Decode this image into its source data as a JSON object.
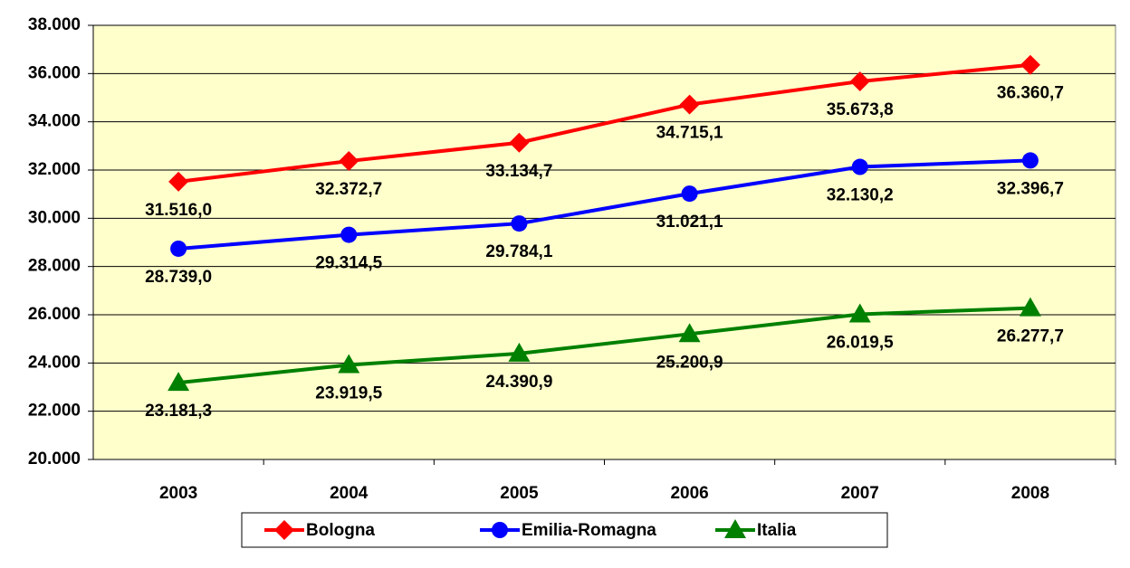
{
  "chart_data": {
    "type": "line",
    "categories": [
      "2003",
      "2004",
      "2005",
      "2006",
      "2007",
      "2008"
    ],
    "series": [
      {
        "name": "Bologna",
        "color": "#ff0000",
        "marker": "diamond",
        "values": [
          31516.0,
          32372.7,
          33134.7,
          34715.1,
          35673.8,
          36360.7
        ],
        "value_labels": [
          "31.516,0",
          "32.372,7",
          "33.134,7",
          "34.715,1",
          "35.673,8",
          "36.360,7"
        ]
      },
      {
        "name": "Emilia-Romagna",
        "color": "#0000ff",
        "marker": "circle",
        "values": [
          28739.0,
          29314.5,
          29784.1,
          31021.1,
          32130.2,
          32396.7
        ],
        "value_labels": [
          "28.739,0",
          "29.314,5",
          "29.784,1",
          "31.021,1",
          "32.130,2",
          "32.396,7"
        ]
      },
      {
        "name": "Italia",
        "color": "#008000",
        "marker": "triangle",
        "values": [
          23181.3,
          23919.5,
          24390.9,
          25200.9,
          26019.5,
          26277.7
        ],
        "value_labels": [
          "23.181,3",
          "23.919,5",
          "24.390,9",
          "25.200,9",
          "26.019,5",
          "26.277,7"
        ]
      }
    ],
    "ylim": [
      20000,
      38000
    ],
    "yticks": [
      {
        "value": 20000,
        "label": "20.000"
      },
      {
        "value": 22000,
        "label": "22.000"
      },
      {
        "value": 24000,
        "label": "24.000"
      },
      {
        "value": 26000,
        "label": "26.000"
      },
      {
        "value": 28000,
        "label": "28.000"
      },
      {
        "value": 30000,
        "label": "30.000"
      },
      {
        "value": 32000,
        "label": "32.000"
      },
      {
        "value": 34000,
        "label": "34.000"
      },
      {
        "value": 36000,
        "label": "36.000"
      },
      {
        "value": 38000,
        "label": "38.000"
      }
    ],
    "grid": true,
    "legend": "bottom",
    "plot_background": "#ffffcc"
  }
}
